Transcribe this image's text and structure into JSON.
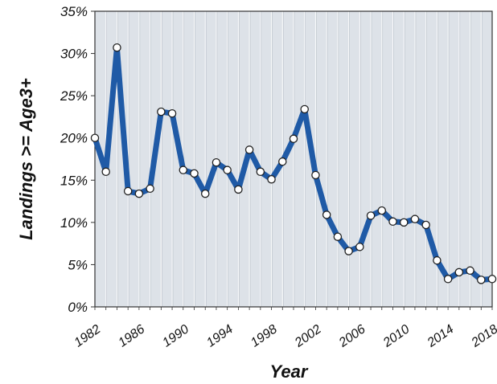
{
  "chart_data": {
    "type": "line",
    "title": "",
    "xlabel": "Year",
    "ylabel": "Landings >= Age3+",
    "x": [
      1982,
      1983,
      1984,
      1985,
      1986,
      1987,
      1988,
      1989,
      1990,
      1991,
      1992,
      1993,
      1994,
      1995,
      1996,
      1997,
      1998,
      1999,
      2000,
      2001,
      2002,
      2003,
      2004,
      2005,
      2006,
      2007,
      2008,
      2009,
      2010,
      2011,
      2012,
      2013,
      2014,
      2015,
      2016,
      2017,
      2018
    ],
    "series": [
      {
        "name": "",
        "color": "#1f5aa6",
        "values": [
          20.0,
          16.0,
          30.7,
          13.7,
          13.4,
          14.0,
          23.1,
          22.9,
          16.2,
          15.8,
          13.4,
          17.1,
          16.2,
          13.9,
          18.6,
          16.0,
          15.1,
          17.2,
          19.9,
          23.4,
          15.6,
          10.9,
          8.3,
          6.6,
          7.1,
          10.8,
          11.4,
          10.1,
          10.0,
          10.4,
          9.7,
          5.5,
          3.3,
          4.1,
          4.3,
          3.2,
          3.3
        ]
      }
    ],
    "xlim": [
      1982,
      2018
    ],
    "ylim": [
      0,
      35
    ],
    "yticks": [
      0,
      5,
      10,
      15,
      20,
      25,
      30,
      35
    ],
    "ytick_labels": [
      "0%",
      "5%",
      "10%",
      "15%",
      "20%",
      "25%",
      "30%",
      "35%"
    ],
    "xticks": [
      1982,
      1986,
      1990,
      1994,
      1998,
      2002,
      2006,
      2010,
      2014,
      2018
    ],
    "xtick_labels": [
      "1982",
      "1986",
      "1990",
      "1994",
      "1998",
      "2002",
      "2006",
      "2010",
      "2014",
      "2018"
    ],
    "grid": "vertical",
    "legend": "none",
    "colors": {
      "plot_background": "#dde2e8",
      "line": "#1f5aa6",
      "marker_fill": "#ffffff",
      "marker_edge": "#222222"
    }
  }
}
